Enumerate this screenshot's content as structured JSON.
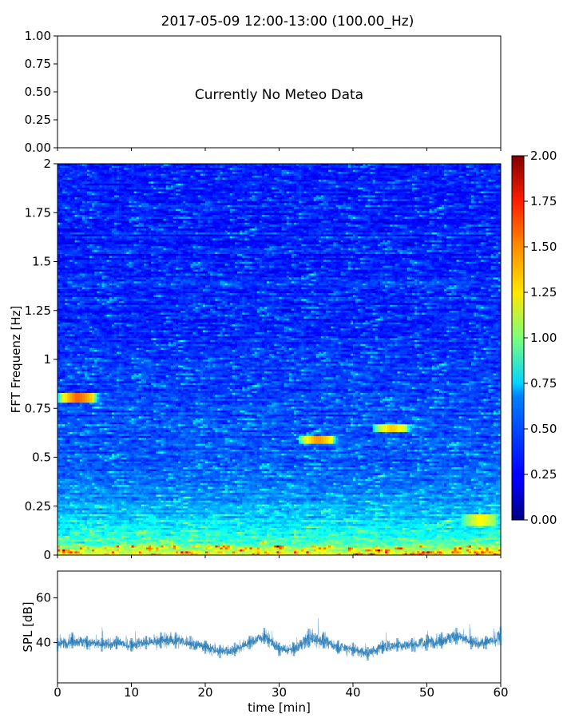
{
  "figure": {
    "title": "2017-05-09 12:00-13:00 (100.00_Hz)"
  },
  "chart_data": [
    {
      "type": "line",
      "panel": "meteo",
      "title": "2017-05-09 12:00-13:00 (100.00_Hz)",
      "annotation": "Currently No Meteo Data",
      "xlim": [
        0,
        60
      ],
      "ylim": [
        0,
        1
      ],
      "yticks": [
        "0.00",
        "0.25",
        "0.50",
        "0.75",
        "1.00"
      ],
      "series": []
    },
    {
      "type": "heatmap",
      "panel": "spectrogram",
      "ylabel": "FFT Frequenz [Hz]",
      "xlim": [
        0,
        60
      ],
      "ylim": [
        0,
        2
      ],
      "yticks": [
        "0",
        "0.25",
        "0.5",
        "0.75",
        "1",
        "1.25",
        "1.5",
        "1.75",
        "2"
      ],
      "colorscale": "jet",
      "colorbar": {
        "range": [
          0,
          2
        ],
        "ticks": [
          "0.00",
          "0.25",
          "0.50",
          "0.75",
          "1.00",
          "1.25",
          "1.50",
          "1.75",
          "2.00"
        ]
      },
      "value_profile": {
        "freq_hz": [
          0,
          0.05,
          0.1,
          0.2,
          0.3,
          0.5,
          0.75,
          1.0,
          1.5,
          2.0
        ],
        "typical_value": [
          1.2,
          0.95,
          0.8,
          0.62,
          0.5,
          0.42,
          0.4,
          0.33,
          0.3,
          0.3
        ]
      },
      "highlights": [
        {
          "t_min": 2.5,
          "freq_hz": 0.8,
          "value": 1.6
        },
        {
          "t_min": 35,
          "freq_hz": 0.59,
          "value": 1.5
        },
        {
          "t_min": 45,
          "freq_hz": 0.65,
          "value": 1.4
        },
        {
          "t_min": 57,
          "freq_hz": 0.18,
          "value": 1.3
        }
      ]
    },
    {
      "type": "line",
      "panel": "spl",
      "ylabel": "SPL [dB]",
      "xlabel": "time [min]",
      "xlim": [
        0,
        60
      ],
      "ylim": [
        22,
        72
      ],
      "xticks": [
        "0",
        "10",
        "20",
        "30",
        "40",
        "50",
        "60"
      ],
      "yticks": [
        "40",
        "60"
      ],
      "series": [
        {
          "color": "#1f77b4",
          "x": [
            0,
            2,
            4,
            6,
            8,
            10,
            12,
            14,
            16,
            18,
            20,
            22,
            24,
            26,
            28,
            30,
            32,
            34,
            36,
            38,
            40,
            42,
            44,
            46,
            48,
            50,
            52,
            54,
            56,
            58,
            60
          ],
          "y": [
            39,
            41,
            40,
            39,
            40,
            39,
            40,
            41,
            41,
            40,
            38,
            36,
            37,
            40,
            43,
            37,
            37,
            42,
            41,
            38,
            37,
            35,
            38,
            39,
            39,
            40,
            41,
            43,
            40,
            40,
            43
          ],
          "spread_db": [
            5,
            6,
            5,
            5,
            5,
            5,
            5,
            6,
            6,
            5,
            5,
            5,
            5,
            5,
            6,
            5,
            5,
            7,
            6,
            5,
            5,
            5,
            5,
            5,
            5,
            6,
            6,
            6,
            5,
            5,
            7
          ]
        }
      ]
    }
  ]
}
